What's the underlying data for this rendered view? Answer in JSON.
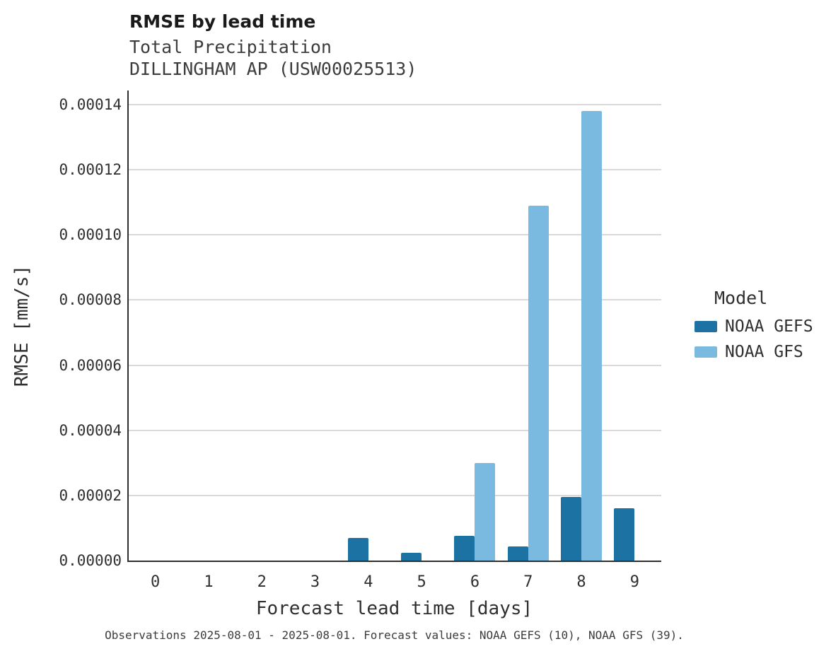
{
  "header": {
    "title": "RMSE by lead time",
    "subtitle1": "Total Precipitation",
    "subtitle2": "DILLINGHAM AP (USW00025513)"
  },
  "legend": {
    "title": "Model",
    "entries": [
      {
        "label": "NOAA GEFS",
        "color": "#1c73a3"
      },
      {
        "label": "NOAA GFS",
        "color": "#7ab9e0"
      }
    ]
  },
  "caption": "Observations 2025-08-01 - 2025-08-01. Forecast values: NOAA GEFS (10), NOAA GFS (39).",
  "chart_data": {
    "type": "bar",
    "title": "RMSE by lead time",
    "subtitle": [
      "Total Precipitation",
      "DILLINGHAM AP (USW00025513)"
    ],
    "xlabel": "Forecast lead time [days]",
    "ylabel": "RMSE [mm/s]",
    "categories": [
      "0",
      "1",
      "2",
      "3",
      "4",
      "5",
      "6",
      "7",
      "8",
      "9"
    ],
    "series": [
      {
        "name": "NOAA GEFS",
        "color": "#1c73a3",
        "values": [
          0,
          0,
          0,
          0,
          7e-06,
          2.4e-06,
          7.6e-06,
          4.4e-06,
          1.95e-05,
          1.6e-05
        ]
      },
      {
        "name": "NOAA GFS",
        "color": "#7ab9e0",
        "values": [
          0,
          0,
          0,
          0,
          0,
          0,
          3e-05,
          0.000109,
          0.000138,
          0
        ]
      }
    ],
    "ylim": [
      0,
      0.00014
    ],
    "yticks": [
      0,
      2e-05,
      4e-05,
      6e-05,
      8e-05,
      0.0001,
      0.00012,
      0.00014
    ],
    "ytick_labels": [
      "0.00000",
      "0.00002",
      "0.00004",
      "0.00006",
      "0.00008",
      "0.00010",
      "0.00012",
      "0.00014"
    ],
    "grid": "horizontal",
    "legend_title": "Model",
    "legend_position": "right"
  }
}
